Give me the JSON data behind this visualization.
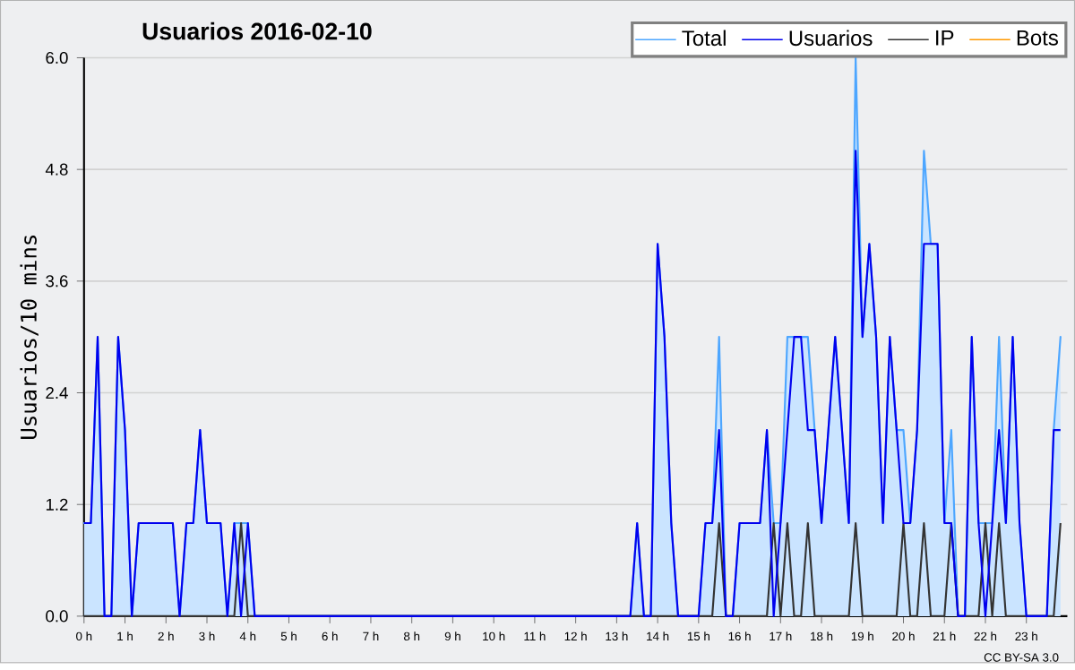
{
  "chart_data": {
    "type": "line",
    "title": "Usuarios  2016-02-10",
    "ylabel": "Usuarios/10 mins",
    "annotations": [
      "CC BY-SA 3.0"
    ],
    "x": [
      0,
      0.167,
      0.333,
      0.5,
      0.667,
      0.833,
      1,
      1.167,
      1.333,
      1.5,
      1.667,
      1.833,
      2,
      2.167,
      2.333,
      2.5,
      2.667,
      2.833,
      3,
      3.167,
      3.333,
      3.5,
      3.667,
      3.833,
      4,
      4.167,
      4.333,
      4.5,
      4.667,
      4.833,
      5,
      5.167,
      5.333,
      5.5,
      5.667,
      5.833,
      6,
      6.167,
      6.333,
      6.5,
      6.667,
      6.833,
      7,
      7.167,
      7.333,
      7.5,
      7.667,
      7.833,
      8,
      8.167,
      8.333,
      8.5,
      8.667,
      8.833,
      9,
      9.167,
      9.333,
      9.5,
      9.667,
      9.833,
      10,
      10.167,
      10.333,
      10.5,
      10.667,
      10.833,
      11,
      11.167,
      11.333,
      11.5,
      11.667,
      11.833,
      12,
      12.167,
      12.333,
      12.5,
      12.667,
      12.833,
      13,
      13.167,
      13.333,
      13.5,
      13.667,
      13.833,
      14,
      14.167,
      14.333,
      14.5,
      14.667,
      14.833,
      15,
      15.167,
      15.333,
      15.5,
      15.667,
      15.833,
      16,
      16.167,
      16.333,
      16.5,
      16.667,
      16.833,
      17,
      17.167,
      17.333,
      17.5,
      17.667,
      17.833,
      18,
      18.167,
      18.333,
      18.5,
      18.667,
      18.833,
      19,
      19.167,
      19.333,
      19.5,
      19.667,
      19.833,
      20,
      20.167,
      20.333,
      20.5,
      20.667,
      20.833,
      21,
      21.167,
      21.333,
      21.5,
      21.667,
      21.833,
      22,
      22.167,
      22.333,
      22.5,
      22.667,
      22.833,
      23,
      23.167,
      23.333,
      23.5,
      23.667,
      23.833
    ],
    "series": [
      {
        "name": "Total",
        "type": "area",
        "color": "#4da6ff",
        "values": [
          1,
          1,
          3,
          0,
          0,
          3,
          2,
          0,
          1,
          1,
          1,
          1,
          1,
          1,
          0,
          1,
          1,
          2,
          1,
          1,
          1,
          0,
          1,
          1,
          1,
          0,
          0,
          0,
          0,
          0,
          0,
          0,
          0,
          0,
          0,
          0,
          0,
          0,
          0,
          0,
          0,
          0,
          0,
          0,
          0,
          0,
          0,
          0,
          0,
          0,
          0,
          0,
          0,
          0,
          0,
          0,
          0,
          0,
          0,
          0,
          0,
          0,
          0,
          0,
          0,
          0,
          0,
          0,
          0,
          0,
          0,
          0,
          0,
          0,
          0,
          0,
          0,
          0,
          0,
          0,
          0,
          1,
          0,
          0,
          4,
          3,
          1,
          0,
          0,
          0,
          0,
          1,
          1,
          3,
          0,
          0,
          1,
          1,
          1,
          1,
          2,
          1,
          1,
          3,
          3,
          3,
          3,
          2,
          1,
          2,
          3,
          2,
          1,
          6,
          3,
          4,
          3,
          1,
          3,
          2,
          2,
          1,
          2,
          5,
          4,
          4,
          1,
          2,
          0,
          0,
          3,
          1,
          1,
          1,
          3,
          1,
          3,
          1,
          0,
          0,
          0,
          0,
          2,
          3
        ]
      },
      {
        "name": "Usuarios",
        "color": "#0000ee",
        "values": [
          1,
          1,
          3,
          0,
          0,
          3,
          2,
          0,
          1,
          1,
          1,
          1,
          1,
          1,
          0,
          1,
          1,
          2,
          1,
          1,
          1,
          0,
          1,
          0,
          1,
          0,
          0,
          0,
          0,
          0,
          0,
          0,
          0,
          0,
          0,
          0,
          0,
          0,
          0,
          0,
          0,
          0,
          0,
          0,
          0,
          0,
          0,
          0,
          0,
          0,
          0,
          0,
          0,
          0,
          0,
          0,
          0,
          0,
          0,
          0,
          0,
          0,
          0,
          0,
          0,
          0,
          0,
          0,
          0,
          0,
          0,
          0,
          0,
          0,
          0,
          0,
          0,
          0,
          0,
          0,
          0,
          1,
          0,
          0,
          4,
          3,
          1,
          0,
          0,
          0,
          0,
          1,
          1,
          2,
          0,
          0,
          1,
          1,
          1,
          1,
          2,
          0,
          1,
          2,
          3,
          3,
          2,
          2,
          1,
          2,
          3,
          2,
          1,
          5,
          3,
          4,
          3,
          1,
          3,
          2,
          1,
          1,
          2,
          4,
          4,
          4,
          1,
          1,
          0,
          0,
          3,
          1,
          0,
          1,
          2,
          1,
          3,
          1,
          0,
          0,
          0,
          0,
          2,
          2
        ]
      },
      {
        "name": "IP",
        "color": "#333333",
        "values": [
          0,
          0,
          0,
          0,
          0,
          0,
          0,
          0,
          0,
          0,
          0,
          0,
          0,
          0,
          0,
          0,
          0,
          0,
          0,
          0,
          0,
          0,
          0,
          1,
          0,
          0,
          0,
          0,
          0,
          0,
          0,
          0,
          0,
          0,
          0,
          0,
          0,
          0,
          0,
          0,
          0,
          0,
          0,
          0,
          0,
          0,
          0,
          0,
          0,
          0,
          0,
          0,
          0,
          0,
          0,
          0,
          0,
          0,
          0,
          0,
          0,
          0,
          0,
          0,
          0,
          0,
          0,
          0,
          0,
          0,
          0,
          0,
          0,
          0,
          0,
          0,
          0,
          0,
          0,
          0,
          0,
          0,
          0,
          0,
          0,
          0,
          0,
          0,
          0,
          0,
          0,
          0,
          0,
          1,
          0,
          0,
          0,
          0,
          0,
          0,
          0,
          1,
          0,
          1,
          0,
          0,
          1,
          0,
          0,
          0,
          0,
          0,
          0,
          1,
          0,
          0,
          0,
          0,
          0,
          0,
          1,
          0,
          0,
          1,
          0,
          0,
          0,
          1,
          0,
          0,
          0,
          0,
          1,
          0,
          1,
          0,
          0,
          0,
          0,
          0,
          0,
          0,
          0,
          1
        ]
      },
      {
        "name": "Bots",
        "color": "#ff9900",
        "values": [
          null,
          null,
          null,
          null,
          null,
          null,
          null,
          null,
          null,
          null,
          null,
          null,
          null,
          null,
          null,
          null,
          null,
          null,
          null,
          null,
          null,
          null,
          null,
          null,
          null,
          null,
          null,
          null,
          null,
          null,
          null,
          null,
          null,
          null,
          null,
          null,
          null,
          null,
          null,
          null,
          null,
          null,
          null,
          null,
          null,
          null,
          null,
          null,
          null,
          null,
          null,
          null,
          null,
          null,
          null,
          null,
          null,
          null,
          null,
          null,
          null,
          null,
          null,
          null,
          null,
          null,
          null,
          null,
          null,
          null,
          null,
          null,
          null,
          null,
          null,
          null,
          null,
          null,
          null,
          null,
          null,
          null,
          null,
          null,
          null,
          null,
          null,
          null,
          null,
          null,
          null,
          null,
          null,
          null,
          null,
          null,
          null,
          null,
          null,
          null,
          null,
          null,
          null,
          null,
          null,
          null,
          null,
          null,
          null,
          null,
          null,
          null,
          null,
          null,
          null,
          null,
          null,
          null,
          null,
          null,
          null,
          null,
          null,
          null,
          null,
          null,
          null,
          null,
          null,
          null,
          null,
          null,
          null,
          null,
          null,
          null,
          null,
          null,
          null,
          null,
          null,
          null,
          null,
          null
        ]
      }
    ],
    "xlim": [
      0,
      24
    ],
    "ylim": [
      0,
      6
    ],
    "xticks": [
      {
        "value": 0,
        "label": "0 h"
      },
      {
        "value": 1,
        "label": "1 h"
      },
      {
        "value": 2,
        "label": "2 h"
      },
      {
        "value": 3,
        "label": "3 h"
      },
      {
        "value": 4,
        "label": "4 h"
      },
      {
        "value": 5,
        "label": "5 h"
      },
      {
        "value": 6,
        "label": "6 h"
      },
      {
        "value": 7,
        "label": "7 h"
      },
      {
        "value": 8,
        "label": "8 h"
      },
      {
        "value": 9,
        "label": "9 h"
      },
      {
        "value": 10,
        "label": "10 h"
      },
      {
        "value": 11,
        "label": "11 h"
      },
      {
        "value": 12,
        "label": "12 h"
      },
      {
        "value": 13,
        "label": "13 h"
      },
      {
        "value": 14,
        "label": "14 h"
      },
      {
        "value": 15,
        "label": "15 h"
      },
      {
        "value": 16,
        "label": "16 h"
      },
      {
        "value": 17,
        "label": "17 h"
      },
      {
        "value": 18,
        "label": "18 h"
      },
      {
        "value": 19,
        "label": "19 h"
      },
      {
        "value": 20,
        "label": "20 h"
      },
      {
        "value": 21,
        "label": "21 h"
      },
      {
        "value": 22,
        "label": "22 h"
      },
      {
        "value": 23,
        "label": "23 h"
      }
    ],
    "yticks": [
      {
        "value": 0,
        "label": "0.0"
      },
      1.2,
      2.4,
      3.6,
      4.8,
      {
        "value": 6,
        "label": "6.0"
      }
    ],
    "grid": "y",
    "legend": "top right",
    "marker": "none",
    "line_style": "solid"
  }
}
